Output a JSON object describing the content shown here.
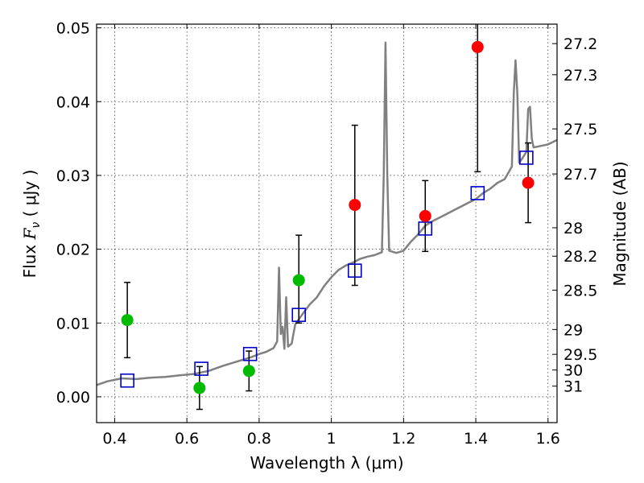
{
  "chart_data": {
    "type": "scatter",
    "xlabel": "Wavelength  λ (μm)",
    "ylabel_prefix": "Flux  ",
    "ylabel_symbol": "F",
    "ylabel_sub": "ν",
    "ylabel_unit": "  ( μJy )",
    "y2label": "Magnitude (AB)",
    "xlim": [
      0.35,
      1.625
    ],
    "ylim": [
      -0.0035,
      0.0505
    ],
    "grid": true,
    "x_ticks": [
      0.4,
      0.6,
      0.8,
      1.0,
      1.2,
      1.4,
      1.6
    ],
    "x_tick_labels": [
      "0.4",
      "0.6",
      "0.8",
      "1",
      "1.2",
      "1.4",
      "1.6"
    ],
    "y_ticks": [
      0.0,
      0.01,
      0.02,
      0.03,
      0.04,
      0.05
    ],
    "y_tick_labels": [
      "0.00",
      "0.01",
      "0.02",
      "0.03",
      "0.04",
      "0.05"
    ],
    "y2_ticks": [
      27.2,
      27.3,
      27.5,
      27.7,
      28,
      28.2,
      28.5,
      29,
      29.5,
      30,
      31
    ],
    "y2_tick_labels": [
      "27.2",
      "27.3",
      "27.5",
      "27.7",
      "28",
      "28.2",
      "28.5",
      "29",
      "29.5",
      "30",
      "31"
    ],
    "colors": {
      "model": "#808080",
      "detection": "#ff0000",
      "nondetection": "#00bb00",
      "model_band": "#0000cc",
      "errorbar": "#000000"
    },
    "model_spectrum": {
      "x": [
        0.35,
        0.38,
        0.42,
        0.46,
        0.5,
        0.54,
        0.58,
        0.62,
        0.66,
        0.7,
        0.74,
        0.78,
        0.8,
        0.82,
        0.84,
        0.85,
        0.855,
        0.86,
        0.865,
        0.87,
        0.875,
        0.88,
        0.89,
        0.9,
        0.92,
        0.94,
        0.96,
        0.98,
        1.0,
        1.02,
        1.04,
        1.06,
        1.08,
        1.1,
        1.12,
        1.14,
        1.145,
        1.15,
        1.155,
        1.16,
        1.18,
        1.2,
        1.22,
        1.24,
        1.26,
        1.28,
        1.3,
        1.32,
        1.34,
        1.36,
        1.38,
        1.4,
        1.42,
        1.44,
        1.46,
        1.48,
        1.5,
        1.505,
        1.51,
        1.515,
        1.52,
        1.53,
        1.54,
        1.545,
        1.55,
        1.555,
        1.56,
        1.58,
        1.6,
        1.625
      ],
      "y": [
        0.0016,
        0.0021,
        0.0025,
        0.0024,
        0.0026,
        0.0027,
        0.0029,
        0.0031,
        0.0035,
        0.0042,
        0.0048,
        0.0054,
        0.0058,
        0.0061,
        0.0066,
        0.0075,
        0.0175,
        0.0085,
        0.0095,
        0.0065,
        0.0135,
        0.0068,
        0.0072,
        0.0098,
        0.0112,
        0.0125,
        0.0135,
        0.015,
        0.0162,
        0.0172,
        0.0178,
        0.0182,
        0.0187,
        0.019,
        0.0192,
        0.0196,
        0.03,
        0.048,
        0.03,
        0.0198,
        0.0195,
        0.0198,
        0.021,
        0.022,
        0.0232,
        0.0238,
        0.0243,
        0.0248,
        0.0253,
        0.0258,
        0.0263,
        0.0268,
        0.0276,
        0.0282,
        0.029,
        0.0295,
        0.0312,
        0.041,
        0.0456,
        0.041,
        0.0317,
        0.0324,
        0.0332,
        0.039,
        0.0393,
        0.035,
        0.0338,
        0.034,
        0.0342,
        0.0348
      ]
    },
    "model_band_points": {
      "x": [
        0.435,
        0.64,
        0.775,
        0.91,
        1.065,
        1.26,
        1.405,
        1.54
      ],
      "y": [
        0.0022,
        0.0038,
        0.0058,
        0.0111,
        0.0171,
        0.0228,
        0.0276,
        0.0324
      ]
    },
    "detections": {
      "x": [
        1.065,
        1.26,
        1.405,
        1.545
      ],
      "y": [
        0.026,
        0.0245,
        0.0474,
        0.029
      ],
      "err_low": [
        0.0109,
        0.0048,
        0.0169,
        0.0054
      ],
      "err_high": [
        0.0108,
        0.0048,
        0.0036,
        0.0054
      ]
    },
    "nondetections": {
      "x": [
        0.435,
        0.635,
        0.772,
        0.91
      ],
      "y": [
        0.0104,
        0.0012,
        0.0035,
        0.0158
      ],
      "err_low": [
        0.0051,
        0.0029,
        0.0027,
        0.0058
      ],
      "err_high": [
        0.0051,
        0.0029,
        0.0027,
        0.0061
      ]
    }
  }
}
